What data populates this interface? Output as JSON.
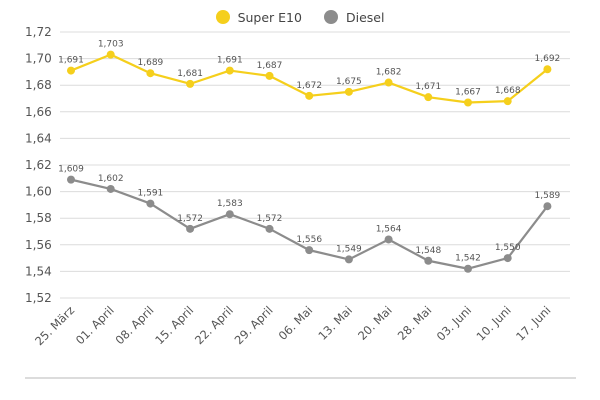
{
  "chart_data": {
    "type": "line",
    "categories": [
      "25. März",
      "01. April",
      "08. April",
      "15. April",
      "22. April",
      "29. April",
      "06. Mai",
      "13. Mai",
      "20. Mai",
      "28. Mai",
      "03. Juni",
      "10. Juni",
      "17. Juni"
    ],
    "series": [
      {
        "name": "Super E10",
        "color": "#f5cf1c",
        "values": [
          1.691,
          1.703,
          1.689,
          1.681,
          1.691,
          1.687,
          1.672,
          1.675,
          1.682,
          1.671,
          1.667,
          1.668,
          1.692
        ],
        "labels": [
          "1,691",
          "1,703",
          "1,689",
          "1,681",
          "1,691",
          "1,687",
          "1,672",
          "1,675",
          "1,682",
          "1,671",
          "1,667",
          "1,668",
          "1,692"
        ]
      },
      {
        "name": "Diesel",
        "color": "#8c8c8c",
        "values": [
          1.609,
          1.602,
          1.591,
          1.572,
          1.583,
          1.572,
          1.556,
          1.549,
          1.564,
          1.548,
          1.542,
          1.55,
          1.589
        ],
        "labels": [
          "1,609",
          "1,602",
          "1,591",
          "1,572",
          "1,583",
          "1,572",
          "1,556",
          "1,549",
          "1,564",
          "1,548",
          "1,542",
          "1,550",
          "1,589"
        ]
      }
    ],
    "ylim": [
      1.52,
      1.72
    ],
    "yticks": [
      1.52,
      1.54,
      1.56,
      1.58,
      1.6,
      1.62,
      1.64,
      1.66,
      1.68,
      1.7,
      1.72
    ],
    "ytick_labels": [
      "1,52",
      "1,54",
      "1,56",
      "1,58",
      "1,60",
      "1,62",
      "1,64",
      "1,66",
      "1,68",
      "1,70",
      "1,72"
    ],
    "title": "",
    "xlabel": "",
    "ylabel": "",
    "grid": true,
    "legend_position": "top-center"
  }
}
